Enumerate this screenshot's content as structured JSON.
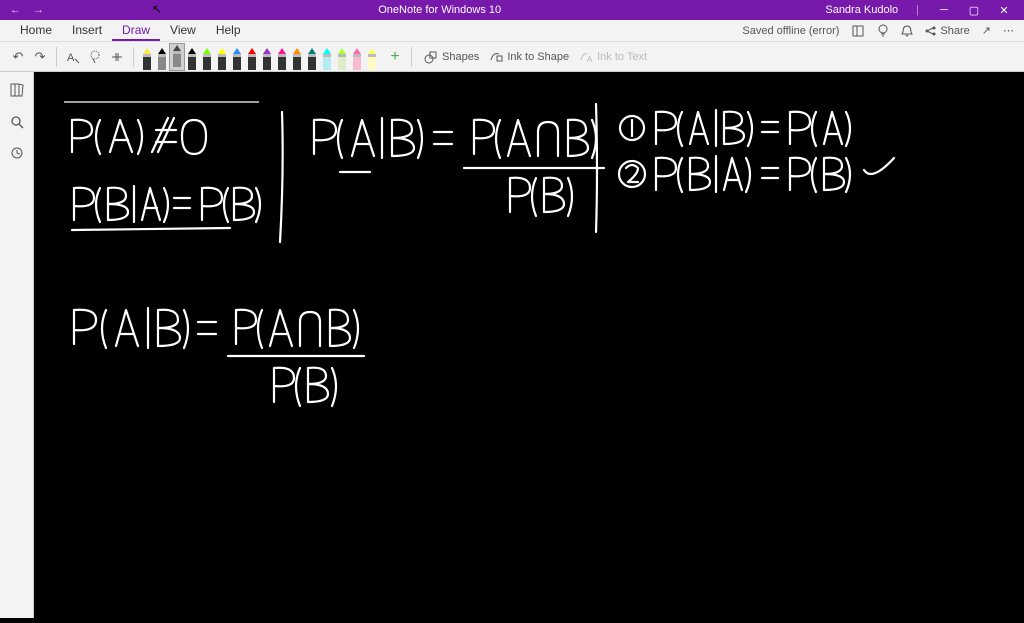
{
  "titlebar": {
    "app_title": "OneNote for Windows 10",
    "user_name": "Sandra Kudolo",
    "color": "#7719aa"
  },
  "menu": {
    "tabs": [
      "Home",
      "Insert",
      "Draw",
      "View",
      "Help"
    ],
    "active_tab": "Draw",
    "status": "Saved offline (error)",
    "share_label": "Share"
  },
  "toolbar": {
    "undo_icon": "↶",
    "redo_icon": "↷",
    "pen_colors": [
      {
        "tip": "#ffeb3b",
        "body": "#333"
      },
      {
        "tip": "#000000",
        "body": "#888"
      },
      {
        "tip": "#444444",
        "body": "#888"
      },
      {
        "tip": "#000000",
        "body": "#333"
      },
      {
        "tip": "#7cfc00",
        "body": "#333"
      },
      {
        "tip": "#ffff00",
        "body": "#333"
      },
      {
        "tip": "#1e90ff",
        "body": "#333"
      },
      {
        "tip": "#ff0000",
        "body": "#333"
      },
      {
        "tip": "#9932cc",
        "body": "#333"
      },
      {
        "tip": "#ff1493",
        "body": "#333"
      },
      {
        "tip": "#ff8c00",
        "body": "#333"
      },
      {
        "tip": "#008080",
        "body": "#333"
      },
      {
        "tip": "#00ffff",
        "body": "#b2ebf2"
      },
      {
        "tip": "#adff2f",
        "body": "#dcedc8"
      },
      {
        "tip": "#ff69b4",
        "body": "#f8bbd0"
      },
      {
        "tip": "#ffff66",
        "body": "#fff9c4"
      }
    ],
    "selected_pen": 2,
    "add_pen": "+",
    "shapes_label": "Shapes",
    "ink_to_shape_label": "Ink to Shape",
    "ink_to_text_label": "Ink to Text"
  },
  "canvas": {
    "background": "#000000",
    "stroke_color": "#ffffff",
    "content": {
      "block1": {
        "text1": "P(A) ≠ 0",
        "text2": "P(B|A) = P(B)"
      },
      "block2": {
        "text": "P(A|B) = P(A∩B) / P(B)"
      },
      "block3": {
        "line1": "① P(A|B) = P(A)",
        "line2": "② P(B|A) = P(B) ✓"
      },
      "block4": {
        "text": "P(A|B) = P(A∩B) / P(B)"
      }
    }
  }
}
